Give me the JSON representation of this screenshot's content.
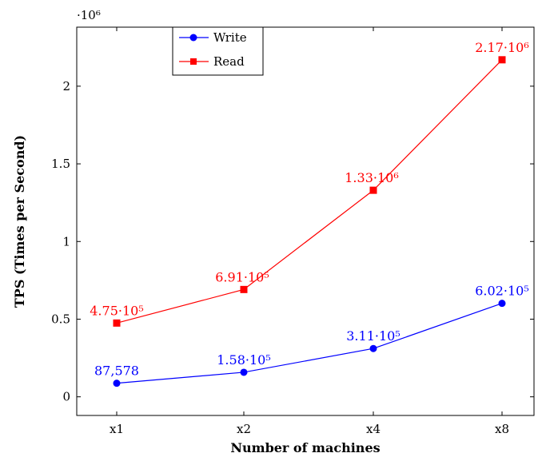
{
  "chart_data": {
    "type": "line",
    "categories": [
      "x1",
      "x2",
      "x4",
      "x8"
    ],
    "xlabel": "Number of machines",
    "ylabel": "TPS (Times per Second)",
    "y_multiplier": "·10⁶",
    "ylim": [
      -0.12,
      2.38
    ],
    "y_ticks": [
      0,
      0.5,
      1,
      1.5,
      2
    ],
    "y_tick_labels": [
      "0",
      "0.5",
      "1",
      "1.5",
      "2"
    ],
    "legend_position": "top-left",
    "series": [
      {
        "name": "Write",
        "color": "#0000ff",
        "marker": "circle",
        "values": [
          87578,
          158000,
          311000,
          602000
        ],
        "data_labels": [
          "87,578",
          "1.58·10⁵",
          "3.11·10⁵",
          "6.02·10⁵"
        ]
      },
      {
        "name": "Read",
        "color": "#ff0000",
        "marker": "square",
        "values": [
          475000,
          691000,
          1330000,
          2170000
        ],
        "data_labels": [
          "4.75·10⁵",
          "6.91·10⁵",
          "1.33·10⁶",
          "2.17·10⁶"
        ]
      }
    ]
  }
}
